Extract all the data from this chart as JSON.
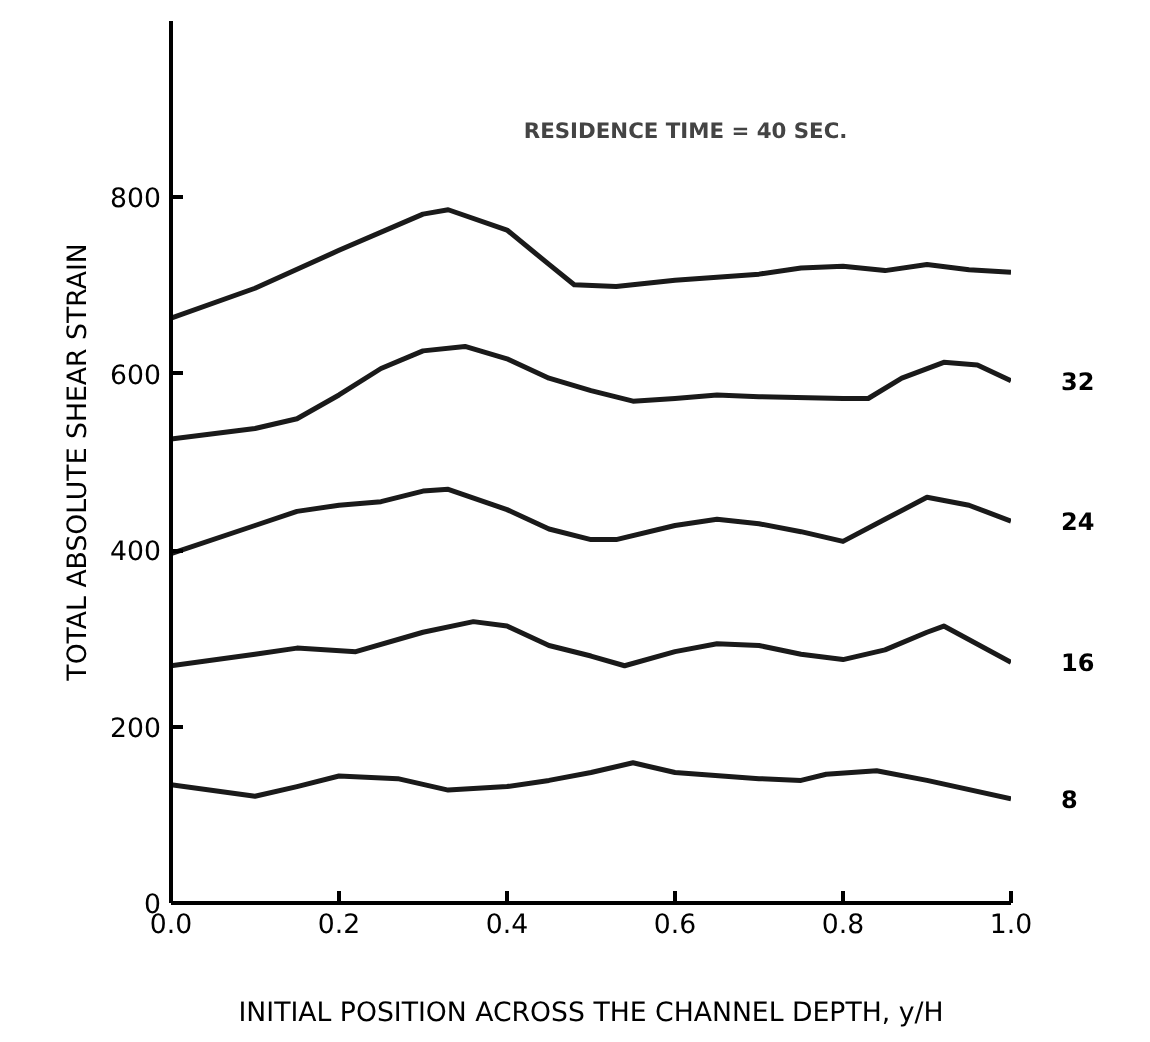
{
  "chart_data": {
    "type": "line",
    "xlabel": "INITIAL POSITION ACROSS THE CHANNEL DEPTH, y/H",
    "ylabel": "TOTAL ABSOLUTE SHEAR STRAIN",
    "annotations": [
      "RESIDENCE TIME = 40 SEC."
    ],
    "xlim": [
      0,
      1.0
    ],
    "ylim": [
      0,
      1000
    ],
    "xticks": [
      {
        "value": 0,
        "label": "0.0"
      },
      0.2,
      0.4,
      0.6,
      0.8,
      {
        "value": 1.0,
        "label": "1.0"
      }
    ],
    "yticks": [
      0,
      200,
      400,
      600,
      800
    ],
    "grid": false,
    "marker": "none",
    "line_style": "solid",
    "series": [
      {
        "color": "#1a1a1a",
        "x": [
          0,
          0.1,
          0.2,
          0.3,
          0.33,
          0.4,
          0.45,
          0.48,
          0.53,
          0.6,
          0.7,
          0.75,
          0.8,
          0.85,
          0.9,
          0.95,
          1.0
        ],
        "values": [
          663,
          697,
          740,
          781,
          786,
          763,
          724,
          701,
          699,
          706,
          713,
          720,
          722,
          717,
          724,
          718,
          715
        ]
      },
      {
        "name": "32",
        "color": "#1a1a1a",
        "x": [
          0,
          0.1,
          0.15,
          0.2,
          0.25,
          0.3,
          0.35,
          0.4,
          0.45,
          0.5,
          0.55,
          0.6,
          0.65,
          0.7,
          0.8,
          0.83,
          0.87,
          0.92,
          0.96,
          1.0
        ],
        "values": [
          526,
          538,
          549,
          576,
          606,
          626,
          631,
          617,
          595,
          581,
          569,
          572,
          576,
          574,
          572,
          572,
          595,
          613,
          610,
          592
        ]
      },
      {
        "name": "24",
        "color": "#1a1a1a",
        "x": [
          0,
          0.1,
          0.15,
          0.2,
          0.25,
          0.3,
          0.33,
          0.4,
          0.45,
          0.5,
          0.53,
          0.6,
          0.65,
          0.7,
          0.75,
          0.8,
          0.85,
          0.9,
          0.95,
          1.0
        ],
        "values": [
          396,
          428,
          444,
          451,
          455,
          467,
          469,
          446,
          424,
          412,
          412,
          428,
          435,
          430,
          421,
          410,
          435,
          460,
          451,
          433
        ]
      },
      {
        "name": "16",
        "color": "#1a1a1a",
        "x": [
          0,
          0.1,
          0.15,
          0.22,
          0.3,
          0.36,
          0.4,
          0.45,
          0.5,
          0.54,
          0.6,
          0.65,
          0.7,
          0.75,
          0.8,
          0.85,
          0.9,
          0.92,
          1.0
        ],
        "values": [
          269,
          282,
          289,
          285,
          307,
          319,
          314,
          292,
          280,
          269,
          285,
          294,
          292,
          282,
          276,
          287,
          307,
          314,
          273
        ]
      },
      {
        "name": "8",
        "color": "#1a1a1a",
        "x": [
          0,
          0.1,
          0.15,
          0.2,
          0.27,
          0.33,
          0.4,
          0.45,
          0.5,
          0.55,
          0.6,
          0.7,
          0.75,
          0.78,
          0.84,
          0.9,
          1.0
        ],
        "values": [
          134,
          121,
          132,
          144,
          141,
          128,
          132,
          139,
          148,
          159,
          148,
          141,
          139,
          146,
          150,
          139,
          118
        ]
      }
    ]
  }
}
